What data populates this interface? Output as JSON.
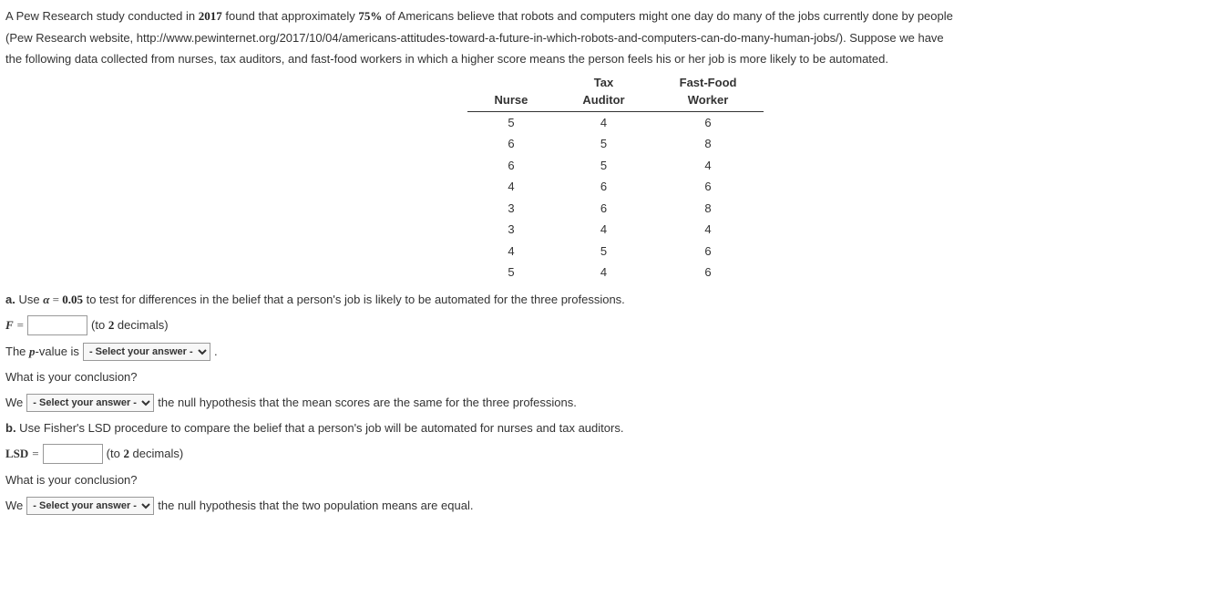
{
  "intro": {
    "line1_pre": "A Pew Research study conducted in ",
    "year": "2017",
    "line1_mid": " found that approximately ",
    "percent": "75%",
    "line1_post": " of Americans believe that robots and computers might one day do many of the jobs currently done by people",
    "line2": "(Pew Research website, http://www.pewinternet.org/2017/10/04/americans-attitudes-toward-a-future-in-which-robots-and-computers-can-do-many-human-jobs/). Suppose we have",
    "line3": "the following data collected from nurses, tax auditors, and fast-food workers in which a higher score means the person feels his or her job is more likely to be automated."
  },
  "table": {
    "headers": {
      "col1": "Nurse",
      "col2_top": "Tax",
      "col2_bot": "Auditor",
      "col3_top": "Fast-Food",
      "col3_bot": "Worker"
    },
    "rows": [
      [
        "5",
        "4",
        "6"
      ],
      [
        "6",
        "5",
        "8"
      ],
      [
        "6",
        "5",
        "4"
      ],
      [
        "4",
        "6",
        "6"
      ],
      [
        "3",
        "6",
        "8"
      ],
      [
        "3",
        "4",
        "4"
      ],
      [
        "4",
        "5",
        "6"
      ],
      [
        "5",
        "4",
        "6"
      ]
    ]
  },
  "partA": {
    "label": "a.",
    "prompt_pre": " Use ",
    "alpha_var": "α",
    "alpha_eq": " = ",
    "alpha_val": "0.05",
    "prompt_post": " to test for differences in the belief that a person's job is likely to be automated for the three professions.",
    "F_var": "F",
    "equals": " = ",
    "F_hint": "(to 2 decimals)",
    "pval_pre": "The ",
    "p_var": "p",
    "pval_mid": "-value is",
    "pval_post": ".",
    "conclusion_q": "What is your conclusion?",
    "we": "We",
    "conclusion_post": "the null hypothesis that the mean scores are the same for the three professions."
  },
  "partB": {
    "label": "b.",
    "prompt": " Use Fisher's LSD procedure to compare the belief that a person's job will be automated for nurses and tax auditors.",
    "LSD_var": "LSD",
    "equals": " = ",
    "LSD_hint": "(to 2 decimals)",
    "conclusion_q": "What is your conclusion?",
    "we": "We",
    "conclusion_post": "the null hypothesis that the two population means are equal."
  },
  "select_placeholder": "- Select your answer -"
}
